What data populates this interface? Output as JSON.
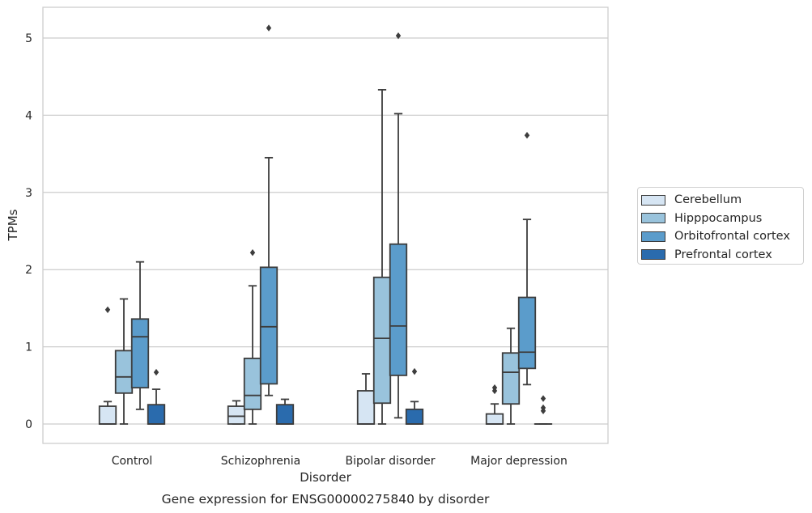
{
  "chart_data": {
    "type": "box",
    "xlabel": "Disorder",
    "ylabel": "TPMs",
    "caption": "Gene expression for ENSG00000275840 by disorder",
    "categories": [
      "Control",
      "Schizophrenia",
      "Bipolar disorder",
      "Major depression"
    ],
    "ylim": [
      -0.25,
      5.4
    ],
    "yticks": [
      0,
      1,
      2,
      3,
      4,
      5
    ],
    "grid": "horizontal",
    "legend_position": "right",
    "series": [
      {
        "name": "Cerebellum",
        "color": "#d6e5f3",
        "boxes": [
          {
            "min": 0,
            "q1": 0,
            "median": 0,
            "q3": 0.23,
            "max": 0.29,
            "outliers": [
              1.48
            ]
          },
          {
            "min": 0,
            "q1": 0,
            "median": 0.1,
            "q3": 0.23,
            "max": 0.3,
            "outliers": []
          },
          {
            "min": 0,
            "q1": 0,
            "median": 0,
            "q3": 0.43,
            "max": 0.65,
            "outliers": []
          },
          {
            "min": 0,
            "q1": 0,
            "median": 0,
            "q3": 0.13,
            "max": 0.26,
            "outliers": [
              0.43,
              0.47
            ]
          }
        ]
      },
      {
        "name": "Hipppocampus",
        "color": "#99c3dc",
        "boxes": [
          {
            "min": 0,
            "q1": 0.4,
            "median": 0.61,
            "q3": 0.95,
            "max": 1.62,
            "outliers": []
          },
          {
            "min": 0,
            "q1": 0.19,
            "median": 0.37,
            "q3": 0.85,
            "max": 1.79,
            "outliers": [
              2.22
            ]
          },
          {
            "min": 0,
            "q1": 0.27,
            "median": 1.11,
            "q3": 1.9,
            "max": 4.33,
            "outliers": []
          },
          {
            "min": 0,
            "q1": 0.26,
            "median": 0.67,
            "q3": 0.92,
            "max": 1.24,
            "outliers": []
          }
        ]
      },
      {
        "name": "Orbitofrontal cortex",
        "color": "#5b9ccb",
        "boxes": [
          {
            "min": 0.19,
            "q1": 0.47,
            "median": 1.13,
            "q3": 1.36,
            "max": 2.1,
            "outliers": []
          },
          {
            "min": 0.37,
            "q1": 0.52,
            "median": 1.26,
            "q3": 2.03,
            "max": 3.45,
            "outliers": [
              5.13
            ]
          },
          {
            "min": 0.08,
            "q1": 0.63,
            "median": 1.27,
            "q3": 2.33,
            "max": 4.02,
            "outliers": [
              5.03
            ]
          },
          {
            "min": 0.51,
            "q1": 0.72,
            "median": 0.93,
            "q3": 1.64,
            "max": 2.65,
            "outliers": [
              3.74
            ]
          }
        ]
      },
      {
        "name": "Prefrontal cortex",
        "color": "#2a6bad",
        "boxes": [
          {
            "min": 0,
            "q1": 0,
            "median": 0,
            "q3": 0.25,
            "max": 0.45,
            "outliers": [
              0.67
            ]
          },
          {
            "min": 0,
            "q1": 0,
            "median": 0,
            "q3": 0.25,
            "max": 0.32,
            "outliers": []
          },
          {
            "min": 0,
            "q1": 0,
            "median": 0,
            "q3": 0.19,
            "max": 0.29,
            "outliers": [
              0.68
            ]
          },
          {
            "min": 0,
            "q1": 0,
            "median": 0,
            "q3": 0,
            "max": 0,
            "outliers": [
              0.17,
              0.21,
              0.33
            ]
          }
        ]
      }
    ]
  }
}
